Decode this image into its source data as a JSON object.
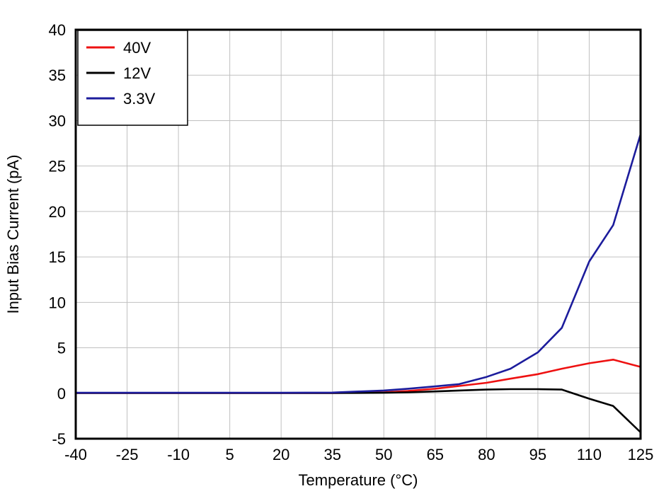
{
  "chart_data": {
    "type": "line",
    "title": "",
    "xlabel": "Temperature (°C)",
    "ylabel": "Input Bias Current (pA)",
    "xlim": [
      -40,
      125
    ],
    "ylim": [
      -5,
      40
    ],
    "xticks": [
      -40,
      -25,
      -10,
      5,
      20,
      35,
      50,
      65,
      80,
      95,
      110,
      125
    ],
    "yticks": [
      -5,
      0,
      5,
      10,
      15,
      20,
      25,
      30,
      35,
      40
    ],
    "grid": true,
    "legend_position": "top-left",
    "x": [
      -40,
      -25,
      -10,
      5,
      20,
      35,
      50,
      57,
      65,
      72,
      80,
      87,
      95,
      102,
      110,
      117,
      125
    ],
    "series": [
      {
        "name": "40V",
        "color": "#ee1111",
        "values": [
          0.02,
          0.02,
          0.02,
          0.02,
          0.02,
          0.03,
          0.1,
          0.25,
          0.5,
          0.8,
          1.15,
          1.6,
          2.1,
          2.7,
          3.3,
          3.7,
          2.9
        ]
      },
      {
        "name": "12V",
        "color": "#000000",
        "values": [
          0.02,
          0.02,
          0.02,
          0.02,
          0.02,
          0.02,
          0.05,
          0.1,
          0.2,
          0.3,
          0.4,
          0.45,
          0.45,
          0.4,
          -0.6,
          -1.4,
          -4.3
        ]
      },
      {
        "name": "3.3V",
        "color": "#1c1c9c",
        "values": [
          0.05,
          0.05,
          0.05,
          0.05,
          0.05,
          0.08,
          0.3,
          0.5,
          0.75,
          1.0,
          1.8,
          2.7,
          4.5,
          7.2,
          14.5,
          18.5,
          28.5
        ]
      }
    ],
    "colors": {
      "background": "#ffffff",
      "grid": "#c0c0c0",
      "axis": "#000000",
      "legend_border": "#000000",
      "legend_background": "#ffffff"
    }
  }
}
